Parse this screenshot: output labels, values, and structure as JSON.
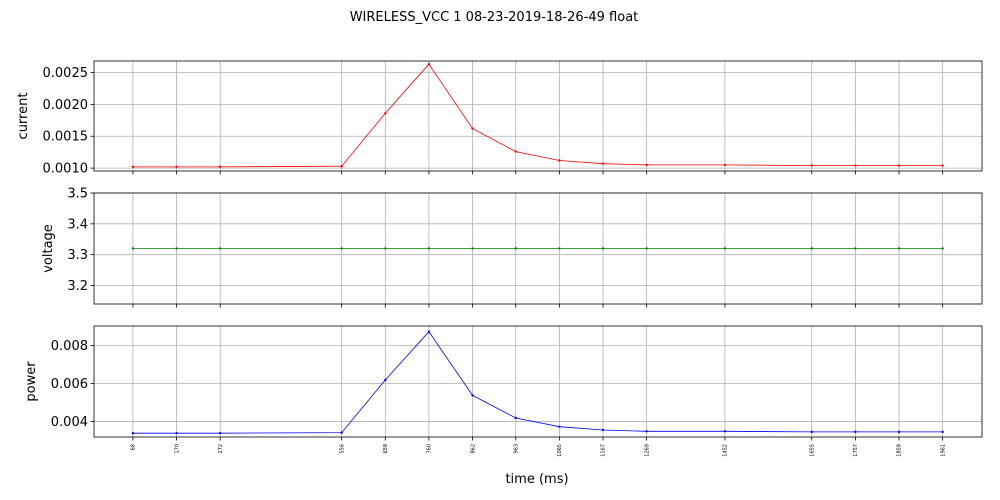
{
  "chart_data": {
    "type": "line",
    "title": "WIRELESS_VCC   1   08-23-2019-18-26-49   float",
    "xlabel": "time (ms)",
    "x": [
      68,
      170,
      272,
      556,
      658,
      760,
      862,
      963,
      1065,
      1167,
      1269,
      1452,
      1655,
      1757,
      1859,
      1961
    ],
    "x_tick_labels": [
      "68",
      "170",
      "272",
      "556",
      "658",
      "760",
      "862",
      "963",
      "1065",
      "1167",
      "1269",
      "1452",
      "1655",
      "1757",
      "1859",
      "1961"
    ],
    "xlim": [
      -23,
      2053
    ],
    "grid": true,
    "subplots": [
      {
        "ylabel": "current",
        "color": "#ff0000",
        "ylim": [
          0.000955,
          0.00268
        ],
        "yticks": [
          0.001,
          0.0015,
          0.002,
          0.0025
        ],
        "ytick_labels": [
          "0.0010",
          "0.0015",
          "0.0020",
          "0.0025"
        ],
        "values": [
          0.00102,
          0.00102,
          0.00102,
          0.00103,
          0.00186,
          0.00263,
          0.00162,
          0.00126,
          0.00112,
          0.00107,
          0.00105,
          0.00105,
          0.00104,
          0.00104,
          0.00104,
          0.00104
        ]
      },
      {
        "ylabel": "voltage",
        "color": "#008000",
        "ylim": [
          3.14,
          3.5
        ],
        "yticks": [
          3.2,
          3.3,
          3.4,
          3.5
        ],
        "ytick_labels": [
          "3.2",
          "3.3",
          "3.4",
          "3.5"
        ],
        "values": [
          3.32,
          3.32,
          3.32,
          3.32,
          3.32,
          3.32,
          3.32,
          3.32,
          3.32,
          3.32,
          3.32,
          3.32,
          3.32,
          3.32,
          3.32,
          3.32
        ]
      },
      {
        "ylabel": "power",
        "color": "#0000ff",
        "ylim": [
          0.00318,
          0.00902
        ],
        "yticks": [
          0.004,
          0.006,
          0.008
        ],
        "ytick_labels": [
          "0.004",
          "0.006",
          "0.008"
        ],
        "values": [
          0.00338,
          0.00338,
          0.00338,
          0.00341,
          0.00618,
          0.00872,
          0.00537,
          0.00418,
          0.00372,
          0.00355,
          0.00348,
          0.00348,
          0.00345,
          0.00345,
          0.00345,
          0.00345
        ]
      }
    ]
  }
}
